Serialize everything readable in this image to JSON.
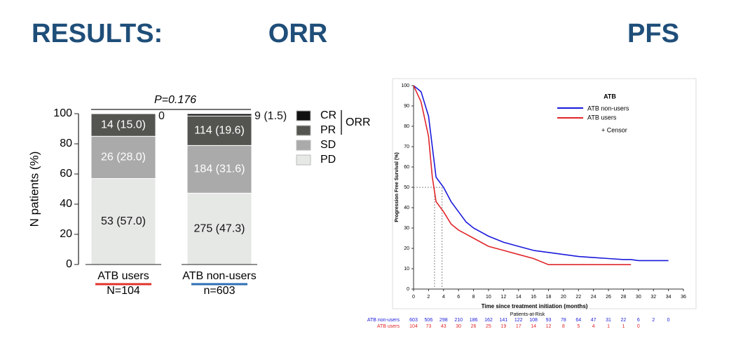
{
  "slide": {
    "title": "RESULTS:"
  },
  "chart_data": [
    {
      "type": "bar",
      "stacked": true,
      "title": "ORR",
      "ylabel": "N patients (%)",
      "categories": [
        "ATB users",
        "ATB non-users"
      ],
      "category_notes": [
        "N=104",
        "n=603"
      ],
      "category_colors": [
        "#e0342c",
        "#2e6fb5"
      ],
      "series": [
        {
          "name": "PD",
          "color": "#e6e8e6",
          "label_color": "#111111",
          "values": [
            57.0,
            47.3
          ],
          "value_labels": [
            "53 (57.0)",
            "275 (47.3)"
          ]
        },
        {
          "name": "SD",
          "color": "#a9aaa9",
          "label_color": "#ffffff",
          "values": [
            28.0,
            31.6
          ],
          "value_labels": [
            "26 (28.0)",
            "184 (31.6)"
          ]
        },
        {
          "name": "PR",
          "color": "#545550",
          "label_color": "#ffffff",
          "values": [
            15.0,
            19.6
          ],
          "value_labels": [
            "14 (15.0)",
            "114 (19.6)"
          ]
        },
        {
          "name": "CR",
          "color": "#111111",
          "label_color": "#111111",
          "values": [
            0,
            1.5
          ],
          "value_labels": [
            "0",
            "9 (1.5)"
          ]
        }
      ],
      "ylim": [
        0,
        100
      ],
      "yticks": [
        0,
        20,
        40,
        60,
        80,
        100
      ],
      "annotations": [
        "P=0.176",
        "ORR"
      ]
    },
    {
      "type": "line",
      "title": "PFS",
      "xlabel": "Time since treatment initiation (months)",
      "ylabel": "Progression Free Survival (%)",
      "legend_title": "ATB",
      "legend_note": "+ Censor",
      "x": [
        0,
        1,
        2,
        2.5,
        3,
        4,
        5,
        6,
        7,
        8,
        10,
        12,
        14,
        16,
        18,
        20,
        22,
        24,
        26,
        28,
        29,
        30,
        32,
        34
      ],
      "series": [
        {
          "name": "ATB non-users",
          "color": "#1a1adb",
          "values": [
            100,
            97,
            85,
            70,
            55,
            50,
            43,
            38,
            33,
            30,
            26,
            23,
            21,
            19,
            18,
            17,
            16,
            15.5,
            15,
            14.5,
            14.5,
            14,
            14,
            14
          ]
        },
        {
          "name": "ATB users",
          "color": "#e0262a",
          "values": [
            100,
            92,
            75,
            55,
            43,
            38,
            32,
            29,
            27,
            25,
            21,
            19,
            17,
            15,
            12,
            12,
            12,
            12,
            12,
            12,
            12,
            null,
            null,
            null
          ]
        }
      ],
      "median_y": 50,
      "medians": [
        2.8,
        3.8
      ],
      "xlim": [
        0,
        36
      ],
      "xticks": [
        0,
        2,
        4,
        6,
        8,
        10,
        12,
        14,
        16,
        18,
        20,
        22,
        24,
        26,
        28,
        30,
        32,
        34,
        36
      ],
      "ylim": [
        0,
        100
      ],
      "yticks": [
        0,
        10,
        20,
        30,
        40,
        50,
        60,
        70,
        80,
        90,
        100
      ],
      "risk_table": {
        "title": "Patients-at-Risk",
        "rows": [
          [
            603,
            506,
            298,
            210,
            186,
            162,
            141,
            122,
            108,
            93,
            78,
            64,
            47,
            31,
            22,
            6,
            2,
            0
          ],
          [
            104,
            73,
            43,
            30,
            26,
            25,
            19,
            17,
            14,
            12,
            8,
            5,
            4,
            1,
            1,
            0
          ]
        ]
      }
    }
  ]
}
